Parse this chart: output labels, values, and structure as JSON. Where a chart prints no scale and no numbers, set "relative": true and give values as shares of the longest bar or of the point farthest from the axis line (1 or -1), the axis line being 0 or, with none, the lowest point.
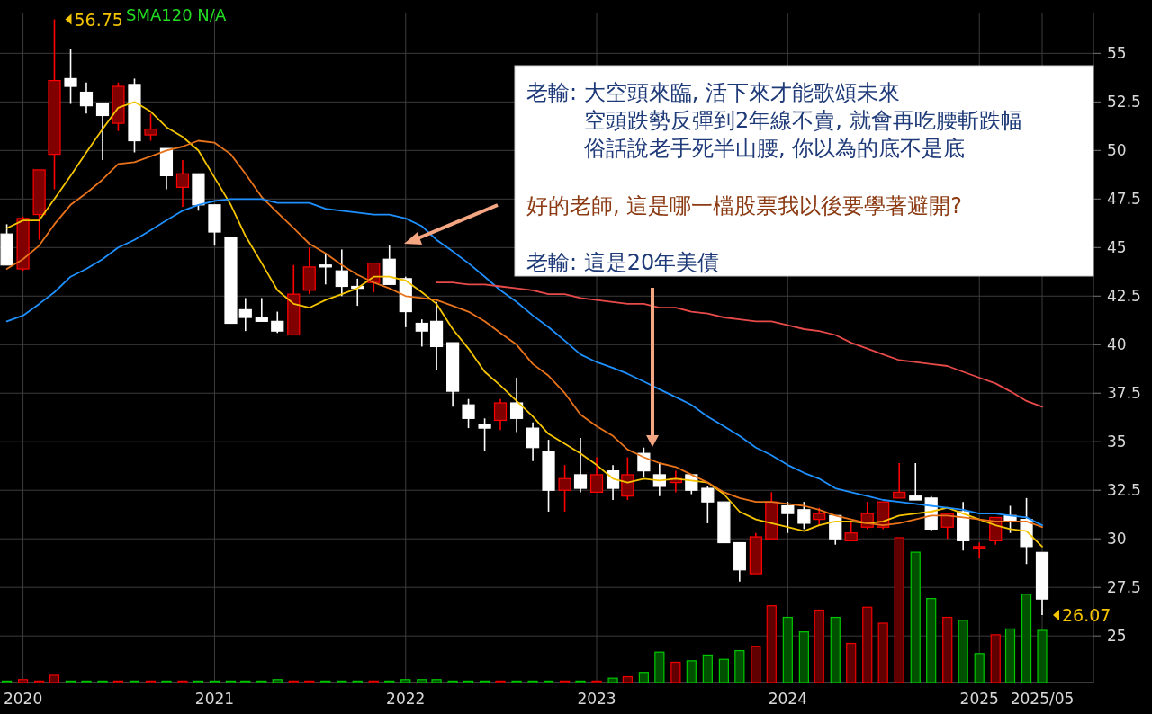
{
  "chart_data": [
    {
      "type": "candlestick",
      "x": [
        "2019-12",
        "2020-01",
        "2020-02",
        "2020-03",
        "2020-04",
        "2020-05",
        "2020-06",
        "2020-07",
        "2020-08",
        "2020-09",
        "2020-10",
        "2020-11",
        "2020-12",
        "2021-01",
        "2021-02",
        "2021-03",
        "2021-04",
        "2021-05",
        "2021-06",
        "2021-07",
        "2021-08",
        "2021-09",
        "2021-10",
        "2021-11",
        "2021-12",
        "2022-01",
        "2022-02",
        "2022-03",
        "2022-04",
        "2022-05",
        "2022-06",
        "2022-07",
        "2022-08",
        "2022-09",
        "2022-10",
        "2022-11",
        "2022-12",
        "2023-01",
        "2023-02",
        "2023-03",
        "2023-04",
        "2023-05",
        "2023-06",
        "2023-07",
        "2023-08",
        "2023-09",
        "2023-10",
        "2023-11",
        "2023-12",
        "2024-01",
        "2024-02",
        "2024-03",
        "2024-04",
        "2024-05",
        "2024-06",
        "2024-07",
        "2024-08",
        "2024-09",
        "2024-10",
        "2024-11",
        "2024-12",
        "2025-01",
        "2025-02",
        "2025-03",
        "2025-04",
        "2025-05"
      ],
      "ohlc": [
        [
          45.7,
          46.2,
          44.1,
          44.1
        ],
        [
          43.9,
          46.6,
          43.8,
          46.5
        ],
        [
          46.7,
          49.0,
          45.4,
          49.0
        ],
        [
          49.8,
          56.75,
          48.0,
          53.6
        ],
        [
          53.7,
          55.2,
          52.4,
          53.3
        ],
        [
          53.0,
          53.5,
          51.9,
          52.3
        ],
        [
          52.4,
          52.4,
          49.5,
          51.8
        ],
        [
          51.4,
          53.5,
          51.0,
          53.3
        ],
        [
          53.4,
          53.7,
          49.9,
          50.5
        ],
        [
          50.8,
          51.9,
          50.5,
          51.1
        ],
        [
          50.1,
          50.1,
          48.0,
          48.7
        ],
        [
          48.1,
          49.5,
          47.1,
          48.8
        ],
        [
          48.8,
          48.8,
          46.9,
          47.2
        ],
        [
          47.2,
          47.2,
          45.1,
          45.8
        ],
        [
          45.5,
          45.5,
          41.1,
          41.1
        ],
        [
          41.8,
          42.4,
          40.7,
          41.4
        ],
        [
          41.4,
          42.4,
          41.2,
          41.2
        ],
        [
          41.2,
          41.7,
          40.6,
          40.7
        ],
        [
          40.5,
          44.1,
          40.5,
          42.6
        ],
        [
          42.8,
          45.0,
          42.6,
          44.0
        ],
        [
          44.1,
          44.7,
          43.1,
          44.0
        ],
        [
          43.8,
          44.9,
          42.5,
          43.0
        ],
        [
          43.0,
          43.4,
          42.0,
          42.9
        ],
        [
          43.2,
          44.2,
          42.7,
          44.2
        ],
        [
          44.4,
          45.1,
          43.1,
          43.1
        ],
        [
          43.4,
          43.5,
          40.9,
          41.7
        ],
        [
          41.1,
          41.3,
          39.9,
          40.7
        ],
        [
          41.2,
          42.2,
          38.7,
          39.9
        ],
        [
          40.1,
          40.1,
          36.8,
          37.6
        ],
        [
          36.9,
          37.2,
          35.7,
          36.2
        ],
        [
          35.9,
          36.2,
          34.5,
          35.7
        ],
        [
          36.1,
          37.2,
          35.6,
          37.0
        ],
        [
          37.0,
          38.3,
          35.5,
          36.2
        ],
        [
          35.7,
          36.0,
          34.0,
          34.7
        ],
        [
          34.5,
          35.1,
          31.4,
          32.5
        ],
        [
          32.5,
          33.8,
          31.4,
          33.1
        ],
        [
          33.3,
          35.2,
          32.4,
          32.6
        ],
        [
          32.4,
          34.2,
          32.4,
          33.3
        ],
        [
          33.5,
          33.8,
          32.0,
          32.6
        ],
        [
          32.2,
          34.2,
          32.0,
          33.3
        ],
        [
          34.4,
          34.7,
          33.2,
          33.5
        ],
        [
          33.3,
          33.9,
          32.2,
          32.7
        ],
        [
          32.9,
          33.5,
          32.4,
          33.1
        ],
        [
          33.3,
          33.3,
          32.3,
          32.5
        ],
        [
          32.6,
          32.7,
          30.8,
          31.9
        ],
        [
          31.9,
          31.9,
          29.8,
          29.8
        ],
        [
          29.8,
          29.8,
          27.8,
          28.4
        ],
        [
          28.2,
          30.3,
          28.2,
          30.1
        ],
        [
          30.0,
          32.4,
          30.0,
          31.9
        ],
        [
          31.7,
          31.9,
          30.3,
          31.3
        ],
        [
          31.5,
          31.9,
          30.5,
          30.8
        ],
        [
          31.0,
          31.6,
          30.7,
          31.3
        ],
        [
          31.2,
          31.2,
          29.7,
          30.0
        ],
        [
          29.9,
          30.9,
          29.9,
          30.3
        ],
        [
          30.6,
          31.9,
          30.5,
          31.3
        ],
        [
          30.6,
          31.9,
          30.5,
          31.9
        ],
        [
          32.1,
          33.9,
          32.1,
          32.4
        ],
        [
          32.2,
          33.9,
          32.0,
          32.0
        ],
        [
          32.1,
          32.2,
          30.4,
          30.5
        ],
        [
          30.6,
          31.3,
          30.0,
          31.3
        ],
        [
          31.4,
          31.9,
          29.4,
          29.9
        ],
        [
          29.6,
          29.8,
          29.0,
          29.6
        ],
        [
          29.9,
          31.1,
          29.7,
          31.1
        ],
        [
          31.2,
          31.7,
          30.3,
          30.9
        ],
        [
          31.0,
          32.1,
          28.7,
          29.6
        ],
        [
          29.3,
          29.3,
          26.07,
          26.9
        ]
      ],
      "colors": [
        "#ffffff",
        "#800000",
        "#800000",
        "#800000",
        "#ffffff",
        "#ffffff",
        "#ffffff",
        "#800000",
        "#ffffff",
        "#800000",
        "#ffffff",
        "#800000",
        "#ffffff",
        "#ffffff",
        "#ffffff",
        "#ffffff",
        "#ffffff",
        "#ffffff",
        "#800000",
        "#800000",
        "#ffffff",
        "#ffffff",
        "#ffffff",
        "#800000",
        "#ffffff",
        "#ffffff",
        "#ffffff",
        "#ffffff",
        "#ffffff",
        "#ffffff",
        "#ffffff",
        "#800000",
        "#ffffff",
        "#ffffff",
        "#ffffff",
        "#800000",
        "#ffffff",
        "#800000",
        "#ffffff",
        "#800000",
        "#ffffff",
        "#ffffff",
        "#800000",
        "#ffffff",
        "#ffffff",
        "#ffffff",
        "#ffffff",
        "#800000",
        "#800000",
        "#ffffff",
        "#ffffff",
        "#800000",
        "#ffffff",
        "#800000",
        "#800000",
        "#800000",
        "#800000",
        "#ffffff",
        "#ffffff",
        "#800000",
        "#ffffff",
        "#800000",
        "#800000",
        "#ffffff",
        "#ffffff",
        "#ffffff"
      ],
      "series": [
        {
          "type": "line",
          "color": "#f5c400",
          "values": [
            46.0,
            46.4,
            46.4,
            47.5,
            48.7,
            49.9,
            51.1,
            52.2,
            52.5,
            52.0,
            51.2,
            50.7,
            50.0,
            48.6,
            47.2,
            45.6,
            44.2,
            42.8,
            42.1,
            41.9,
            42.3,
            42.6,
            42.9,
            43.5,
            43.5,
            43.3,
            42.7,
            42.1,
            40.8,
            39.8,
            38.6,
            37.9,
            37.1,
            36.3,
            35.4,
            34.9,
            34.4,
            33.8,
            33.1,
            32.9,
            33.1,
            33.0,
            33.1,
            33.0,
            32.9,
            32.3,
            31.4,
            31.0,
            30.8,
            30.6,
            30.4,
            30.7,
            30.9,
            30.9,
            30.8,
            30.9,
            31.2,
            31.3,
            31.4,
            31.6,
            31.3,
            31.0,
            30.7,
            30.5,
            30.4,
            29.6
          ]
        },
        {
          "type": "line",
          "color": "#e8731a",
          "values": [
            43.9,
            44.4,
            45.1,
            46.2,
            47.2,
            47.8,
            48.5,
            49.3,
            49.4,
            49.7,
            50.0,
            50.2,
            50.5,
            50.4,
            49.8,
            48.8,
            47.6,
            46.8,
            46.0,
            45.2,
            44.7,
            44.1,
            43.6,
            43.2,
            42.9,
            42.5,
            42.4,
            42.3,
            42.0,
            41.7,
            41.2,
            40.6,
            40.0,
            39.0,
            38.4,
            37.5,
            36.4,
            35.8,
            35.3,
            34.6,
            34.2,
            33.9,
            33.7,
            33.3,
            32.9,
            32.4,
            32.1,
            31.9,
            31.9,
            31.8,
            31.7,
            31.5,
            31.2,
            31.0,
            30.8,
            30.7,
            30.8,
            31.0,
            31.2,
            31.2,
            31.1,
            31.0,
            30.9,
            30.9,
            30.9,
            30.6
          ]
        },
        {
          "type": "line",
          "color": "#1e90ff",
          "values": [
            41.2,
            41.5,
            42.1,
            42.7,
            43.5,
            43.9,
            44.4,
            45.0,
            45.4,
            45.9,
            46.4,
            46.9,
            47.2,
            47.4,
            47.5,
            47.5,
            47.5,
            47.3,
            47.3,
            47.3,
            47.0,
            46.9,
            46.8,
            46.7,
            46.7,
            46.5,
            46.1,
            45.4,
            44.8,
            44.2,
            43.5,
            42.8,
            42.2,
            41.5,
            40.9,
            40.2,
            39.5,
            39.1,
            38.8,
            38.5,
            38.1,
            37.7,
            37.3,
            36.9,
            36.3,
            35.8,
            35.3,
            34.7,
            34.3,
            33.8,
            33.4,
            33.1,
            32.6,
            32.4,
            32.2,
            32.0,
            31.9,
            31.8,
            31.7,
            31.6,
            31.5,
            31.3,
            31.3,
            31.2,
            31.1,
            30.7
          ]
        },
        {
          "type": "line",
          "color": "#e84a4a",
          "values": [
            null,
            null,
            null,
            null,
            null,
            null,
            null,
            null,
            null,
            null,
            null,
            null,
            null,
            null,
            null,
            null,
            null,
            null,
            null,
            null,
            null,
            null,
            null,
            null,
            null,
            null,
            null,
            43.2,
            43.2,
            43.1,
            43.1,
            43.0,
            42.9,
            42.8,
            42.6,
            42.6,
            42.4,
            42.3,
            42.2,
            42.1,
            42.1,
            41.9,
            41.9,
            41.7,
            41.6,
            41.4,
            41.3,
            41.2,
            41.2,
            41.0,
            40.8,
            40.7,
            40.5,
            40.1,
            39.8,
            39.5,
            39.2,
            39.1,
            39.0,
            38.9,
            38.6,
            38.3,
            38.0,
            37.6,
            37.1,
            36.8
          ]
        }
      ],
      "xlim": [
        "2019-11-18",
        "2025-08-07"
      ],
      "ylim": [
        22.6,
        57.1
      ],
      "xticks": [
        {
          "value": "2020-01",
          "label": "2020"
        },
        {
          "value": "2021-01",
          "label": "2021"
        },
        {
          "value": "2022-01",
          "label": "2022"
        },
        {
          "value": "2023-01",
          "label": "2023"
        },
        {
          "value": "2024-01",
          "label": "2024"
        },
        {
          "value": "2025-01",
          "label": "2025"
        },
        {
          "value": "2025-05",
          "label": "2025/05"
        }
      ],
      "yticks": [
        25,
        27.5,
        30,
        32.5,
        35,
        37.5,
        40,
        42.5,
        45,
        47.5,
        50,
        52.5,
        55
      ],
      "grid": true,
      "annotations": [
        "老輸: 大空頭來臨, 活下來才能歌頌未來",
        "空頭跌勢反彈到2年線不賣, 就會再吃腰斬跌幅",
        "俗話說老手死半山腰, 你以為的底不是底",
        "好的老師, 這是哪一檔股票我以後要學著避開?",
        "老輸: 這是20年美債",
        {
          "text": "56.75",
          "x": "2020-03",
          "y": 56.75
        },
        {
          "text": "26.07",
          "x": "2025-05",
          "y": 26.07
        },
        "SMA120 N/A"
      ]
    },
    {
      "type": "bar",
      "relative": true,
      "x": [
        "2019-12",
        "2020-01",
        "2020-02",
        "2020-03",
        "2020-04",
        "2020-05",
        "2020-06",
        "2020-07",
        "2020-08",
        "2020-09",
        "2020-10",
        "2020-11",
        "2020-12",
        "2021-01",
        "2021-02",
        "2021-03",
        "2021-04",
        "2021-05",
        "2021-06",
        "2021-07",
        "2021-08",
        "2021-09",
        "2021-10",
        "2021-11",
        "2021-12",
        "2022-01",
        "2022-02",
        "2022-03",
        "2022-04",
        "2022-05",
        "2022-06",
        "2022-07",
        "2022-08",
        "2022-09",
        "2022-10",
        "2022-11",
        "2022-12",
        "2023-01",
        "2023-02",
        "2023-03",
        "2023-04",
        "2023-05",
        "2023-06",
        "2023-07",
        "2023-08",
        "2023-09",
        "2023-10",
        "2023-11",
        "2023-12",
        "2024-01",
        "2024-02",
        "2024-03",
        "2024-04",
        "2024-05",
        "2024-06",
        "2024-07",
        "2024-08",
        "2024-09",
        "2024-10",
        "2024-11",
        "2024-12",
        "2025-01",
        "2025-02",
        "2025-03",
        "2025-04",
        "2025-05"
      ],
      "xlim": [
        "2019-11-18",
        "2025-08-07"
      ],
      "values": [
        0.01,
        0.02,
        0.01,
        0.05,
        0.01,
        0.01,
        0.01,
        0.01,
        0.01,
        0.01,
        0.01,
        0.01,
        0.01,
        0.01,
        0.01,
        0.01,
        0.01,
        0.02,
        0.01,
        0.01,
        0.01,
        0.01,
        0.01,
        0.01,
        0.01,
        0.02,
        0.02,
        0.02,
        0.01,
        0.01,
        0.01,
        0.01,
        0.01,
        0.01,
        0.01,
        0.01,
        0.01,
        0.01,
        0.03,
        0.04,
        0.07,
        0.21,
        0.14,
        0.15,
        0.19,
        0.16,
        0.22,
        0.25,
        0.53,
        0.45,
        0.35,
        0.5,
        0.45,
        0.27,
        0.52,
        0.41,
        1,
        0.9,
        0.58,
        0.45,
        0.43,
        0.2,
        0.33,
        0.37,
        0.61,
        0.36
      ],
      "colors": [
        "#005000",
        "#600000",
        "#600000",
        "#600000",
        "#005000",
        "#005000",
        "#005000",
        "#600000",
        "#005000",
        "#600000",
        "#005000",
        "#600000",
        "#005000",
        "#005000",
        "#005000",
        "#005000",
        "#005000",
        "#005000",
        "#600000",
        "#600000",
        "#005000",
        "#005000",
        "#005000",
        "#600000",
        "#005000",
        "#005000",
        "#005000",
        "#005000",
        "#005000",
        "#005000",
        "#005000",
        "#600000",
        "#005000",
        "#005000",
        "#005000",
        "#600000",
        "#005000",
        "#600000",
        "#005000",
        "#600000",
        "#005000",
        "#005000",
        "#600000",
        "#005000",
        "#005000",
        "#005000",
        "#005000",
        "#600000",
        "#600000",
        "#005000",
        "#005000",
        "#600000",
        "#005000",
        "#600000",
        "#600000",
        "#600000",
        "#600000",
        "#005000",
        "#005000",
        "#600000",
        "#005000",
        "#005000",
        "#600000",
        "#005000",
        "#005000",
        "#005000"
      ]
    }
  ]
}
